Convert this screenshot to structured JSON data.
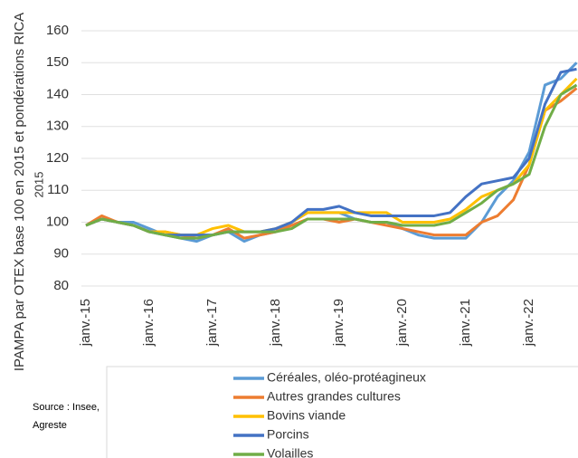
{
  "chart_data": {
    "type": "line",
    "y_label": "IPAMPA par OTEX base 100 en 2015 et pondérations RICA",
    "y_label_2": "2015",
    "source_lines": [
      "Source : Insee,",
      "Agreste"
    ],
    "categories": [
      "janv.-15",
      null,
      null,
      null,
      "janv.-16",
      null,
      null,
      null,
      "janv.-17",
      null,
      null,
      null,
      "janv.-18",
      null,
      null,
      null,
      "janv.-19",
      null,
      null,
      null,
      "janv.-20",
      null,
      null,
      null,
      "janv.-21",
      null,
      null,
      null,
      "janv.-22",
      null,
      null,
      null
    ],
    "series": [
      {
        "name": "Céréales, oléo-protéagineux",
        "color": "#5b9bd5",
        "values": [
          99,
          101,
          100,
          100,
          98,
          96,
          95,
          94,
          96,
          97,
          94,
          96,
          97,
          100,
          103,
          103,
          103,
          101,
          100,
          100,
          98,
          96,
          95,
          95,
          95,
          100,
          108,
          113,
          122,
          143,
          145,
          150
        ]
      },
      {
        "name": "Autres grandes cultures",
        "color": "#ed7d31",
        "values": [
          99,
          102,
          100,
          99,
          97,
          97,
          96,
          95,
          96,
          98,
          95,
          96,
          97,
          99,
          101,
          101,
          100,
          101,
          100,
          99,
          98,
          97,
          96,
          96,
          96,
          100,
          102,
          107,
          118,
          135,
          138,
          142
        ]
      },
      {
        "name": "Bovins viande",
        "color": "#ffc000",
        "values": [
          99,
          101,
          100,
          99,
          97,
          97,
          96,
          96,
          98,
          99,
          97,
          97,
          98,
          100,
          103,
          103,
          103,
          103,
          103,
          103,
          100,
          100,
          100,
          101,
          104,
          108,
          110,
          112,
          118,
          135,
          140,
          145
        ]
      },
      {
        "name": "Porcins",
        "color": "#4472c4",
        "values": [
          99,
          101,
          100,
          99,
          97,
          96,
          96,
          96,
          96,
          97,
          97,
          97,
          98,
          100,
          104,
          104,
          105,
          103,
          102,
          102,
          102,
          102,
          102,
          103,
          108,
          112,
          113,
          114,
          120,
          137,
          147,
          148
        ]
      },
      {
        "name": "Volailles",
        "color": "#70ad47",
        "values": [
          99,
          101,
          100,
          99,
          97,
          96,
          95,
          95,
          96,
          97,
          97,
          97,
          97,
          98,
          101,
          101,
          101,
          101,
          100,
          100,
          99,
          99,
          99,
          100,
          103,
          106,
          110,
          112,
          115,
          130,
          140,
          143
        ]
      }
    ],
    "ylim": [
      80,
      160
    ],
    "yticks": [
      80,
      90,
      100,
      110,
      120,
      130,
      140,
      150,
      160
    ],
    "grid": true
  }
}
